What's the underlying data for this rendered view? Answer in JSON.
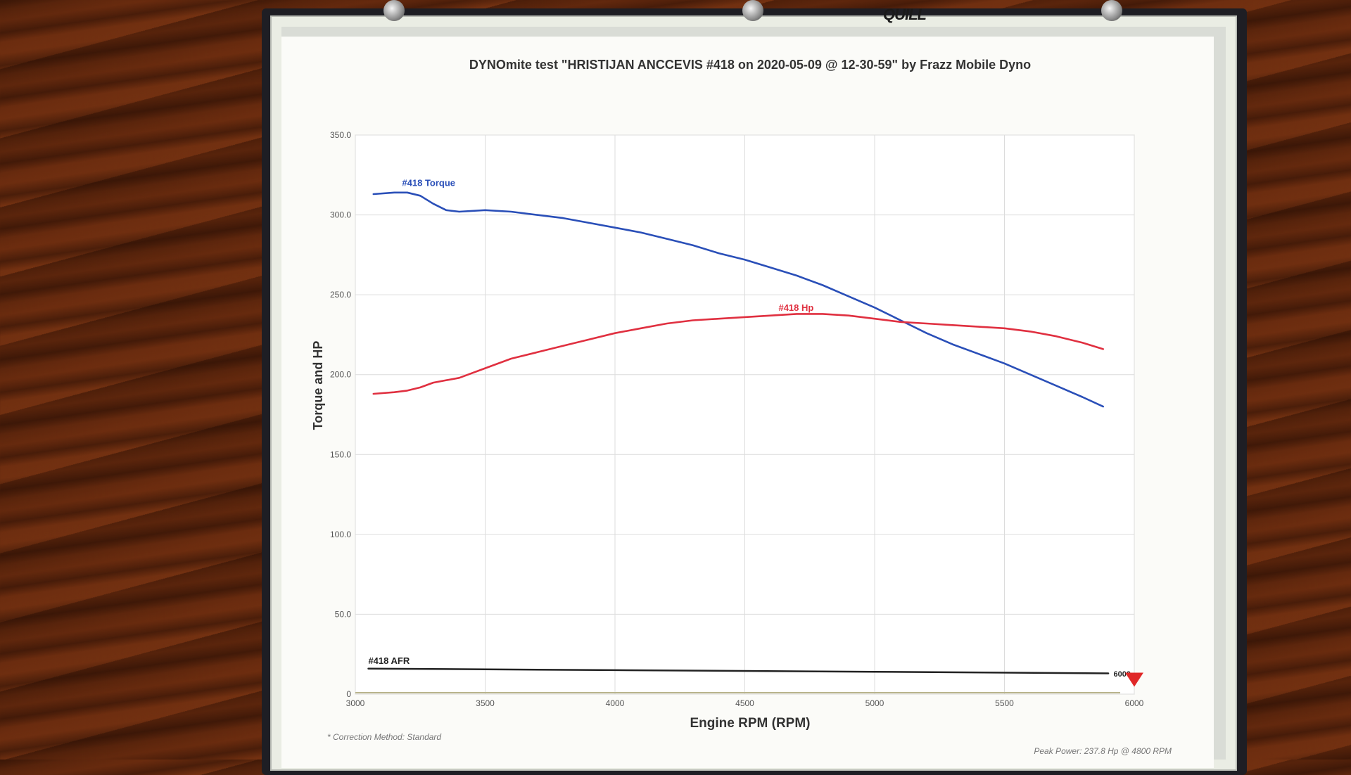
{
  "brand": "QUILL",
  "chart_data": {
    "type": "line",
    "title": "DYNOmite test \"HRISTIJAN ANCCEVIS #418 on 2020-05-09 @ 12-30-59\" by Frazz Mobile Dyno",
    "xlabel": "Engine RPM (RPM)",
    "ylabel": "Torque and HP",
    "xlim": [
      3000,
      6000
    ],
    "ylim": [
      0,
      350
    ],
    "x_ticks": [
      "3000",
      "3500",
      "4000",
      "4500",
      "5000",
      "5500",
      "6000"
    ],
    "y_ticks": [
      "0",
      "50.0",
      "100.0",
      "150.0",
      "200.0",
      "250.0",
      "300.0",
      "350.0"
    ],
    "grid": true,
    "series": [
      {
        "name": "#418 Torque",
        "color": "#2a4fb8",
        "x": [
          3070,
          3150,
          3200,
          3250,
          3300,
          3350,
          3400,
          3500,
          3600,
          3700,
          3800,
          3900,
          4000,
          4100,
          4200,
          4300,
          4400,
          4500,
          4600,
          4700,
          4800,
          4900,
          5000,
          5100,
          5200,
          5300,
          5400,
          5500,
          5600,
          5700,
          5800,
          5880
        ],
        "values": [
          313,
          314,
          314,
          312,
          307,
          303,
          302,
          303,
          302,
          300,
          298,
          295,
          292,
          289,
          285,
          281,
          276,
          272,
          267,
          262,
          256,
          249,
          242,
          234,
          226,
          219,
          213,
          207,
          200,
          193,
          186,
          180
        ]
      },
      {
        "name": "#418 Hp",
        "color": "#e03040",
        "x": [
          3070,
          3150,
          3200,
          3250,
          3300,
          3400,
          3500,
          3600,
          3700,
          3800,
          3900,
          4000,
          4100,
          4200,
          4300,
          4400,
          4500,
          4600,
          4700,
          4800,
          4900,
          5000,
          5100,
          5200,
          5300,
          5400,
          5500,
          5600,
          5700,
          5800,
          5880
        ],
        "values": [
          188,
          189,
          190,
          192,
          195,
          198,
          204,
          210,
          214,
          218,
          222,
          226,
          229,
          232,
          234,
          235,
          236,
          237,
          238,
          238,
          237,
          235,
          233,
          232,
          231,
          230,
          229,
          227,
          224,
          220,
          216
        ]
      },
      {
        "name": "#418 AFR",
        "color": "#222222",
        "x": [
          3050,
          4000,
          5000,
          5900
        ],
        "values": [
          16,
          15,
          14,
          13
        ]
      }
    ],
    "annotations": {
      "afr_end": "6000",
      "correction": "* Correction Method: Standard",
      "peak": "Peak Power: 237.8 Hp @ 4800 RPM"
    }
  }
}
